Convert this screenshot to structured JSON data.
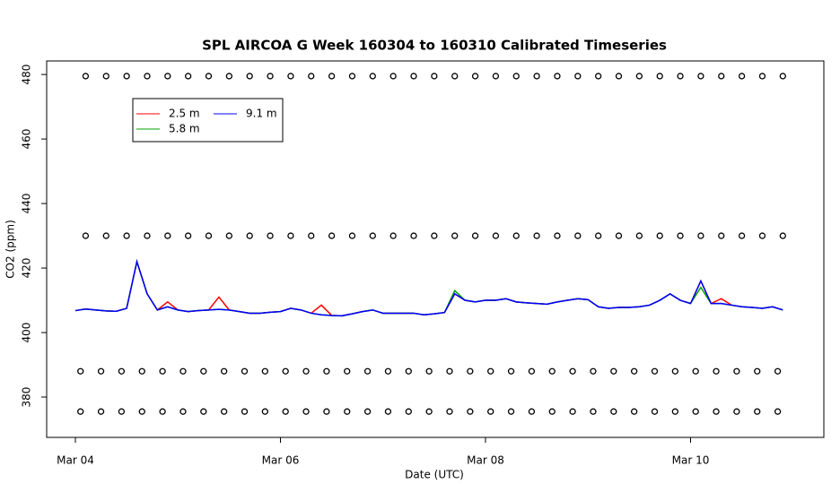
{
  "chart_data": {
    "type": "line",
    "title": "SPL AIRCOA G  Week 160304 to 160310  Calibrated Timeseries",
    "x_label": "Date (UTC)",
    "y_label": "CO2 (ppm)",
    "xlim": [
      -0.28,
      7.3
    ],
    "ylim": [
      367.5,
      484.2
    ],
    "xticks": [
      {
        "value": 0,
        "label": "Mar 04"
      },
      {
        "value": 2,
        "label": "Mar 06"
      },
      {
        "value": 4,
        "label": "Mar 08"
      },
      {
        "value": 6,
        "label": "Mar 10"
      }
    ],
    "yticks": [
      380,
      400,
      420,
      440,
      460,
      480
    ],
    "x": [
      0,
      0.1,
      0.2,
      0.3,
      0.4,
      0.5,
      0.6,
      0.7,
      0.8,
      0.9,
      1.0,
      1.1,
      1.2,
      1.3,
      1.4,
      1.5,
      1.6,
      1.7,
      1.8,
      1.9,
      2.0,
      2.1,
      2.2,
      2.3,
      2.4,
      2.5,
      2.6,
      2.7,
      2.8,
      2.9,
      3.0,
      3.1,
      3.2,
      3.3,
      3.4,
      3.5,
      3.6,
      3.7,
      3.8,
      3.9,
      4.0,
      4.1,
      4.2,
      4.3,
      4.4,
      4.5,
      4.6,
      4.7,
      4.8,
      4.9,
      5.0,
      5.1,
      5.2,
      5.3,
      5.4,
      5.5,
      5.6,
      5.7,
      5.8,
      5.9,
      6.0,
      6.1,
      6.2,
      6.3,
      6.4,
      6.5,
      6.6,
      6.7,
      6.8,
      6.9
    ],
    "series": [
      {
        "name": "2.5 m",
        "color": "#ff0000",
        "values": [
          406.8,
          407.3,
          407,
          406.7,
          406.6,
          407.5,
          422,
          412,
          407,
          409.5,
          407,
          406.5,
          406.8,
          407,
          411,
          407,
          406.5,
          406,
          406,
          406.3,
          406.5,
          407.5,
          407,
          406,
          408.5,
          405.3,
          405.2,
          405.8,
          406.5,
          407,
          406,
          406,
          406,
          406,
          405.5,
          405.8,
          406.2,
          412,
          410,
          409.5,
          410,
          410,
          410.5,
          409.5,
          409.2,
          409,
          408.8,
          409.5,
          410,
          410.5,
          410.2,
          408,
          407.5,
          407.8,
          407.8,
          408,
          408.5,
          410,
          412,
          410,
          409,
          416,
          409,
          410.5,
          408.5,
          408,
          407.8,
          407.5,
          408,
          407
        ]
      },
      {
        "name": "5.8 m",
        "color": "#00a000",
        "values": [
          406.8,
          407.3,
          407,
          406.7,
          406.6,
          407.5,
          422,
          412,
          407,
          408,
          407,
          406.5,
          406.8,
          407,
          407.2,
          407,
          406.5,
          406,
          406,
          406.3,
          406.5,
          407.5,
          407,
          406,
          405.5,
          405.3,
          405.2,
          405.8,
          406.5,
          407,
          406,
          406,
          406,
          406,
          405.5,
          405.8,
          406.2,
          413,
          410,
          409.5,
          410,
          410,
          410.5,
          409.5,
          409.2,
          409,
          408.8,
          409.5,
          410,
          410.5,
          410.2,
          408,
          407.5,
          407.8,
          407.8,
          408,
          408.5,
          410,
          412,
          410,
          409,
          414,
          409,
          409,
          408.5,
          408,
          407.8,
          407.5,
          408,
          407
        ]
      },
      {
        "name": "9.1 m",
        "color": "#0000ff",
        "values": [
          406.8,
          407.3,
          407,
          406.7,
          406.6,
          407.5,
          422,
          412,
          407,
          408,
          407,
          406.5,
          406.8,
          407,
          407.2,
          407,
          406.5,
          406,
          406,
          406.3,
          406.5,
          407.5,
          407,
          406,
          405.5,
          405.3,
          405.2,
          405.8,
          406.5,
          407,
          406,
          406,
          406,
          406,
          405.5,
          405.8,
          406.2,
          412,
          410,
          409.5,
          410,
          410,
          410.5,
          409.5,
          409.2,
          409,
          408.8,
          409.5,
          410,
          410.5,
          410.2,
          408,
          407.5,
          407.8,
          407.8,
          408,
          408.5,
          410,
          412,
          410,
          409,
          416,
          409,
          409,
          408.5,
          408,
          407.8,
          407.5,
          408,
          407
        ]
      }
    ],
    "points": [
      {
        "color": "#000000",
        "x": [
          0.1,
          0.3,
          0.5,
          0.7,
          0.9,
          1.1,
          1.3,
          1.5,
          1.7,
          1.9,
          2.1,
          2.3,
          2.5,
          2.7,
          2.9,
          3.1,
          3.3,
          3.5,
          3.7,
          3.9,
          4.1,
          4.3,
          4.5,
          4.7,
          4.9,
          5.1,
          5.3,
          5.5,
          5.7,
          5.9,
          6.1,
          6.3,
          6.5,
          6.7,
          6.9
        ],
        "values": [
          479.5,
          479.5,
          479.5,
          479.5,
          479.5,
          479.5,
          479.5,
          479.5,
          479.5,
          479.5,
          479.5,
          479.5,
          479.5,
          479.5,
          479.5,
          479.5,
          479.5,
          479.5,
          479.5,
          479.5,
          479.5,
          479.5,
          479.5,
          479.5,
          479.5,
          479.5,
          479.5,
          479.5,
          479.5,
          479.5,
          479.5,
          479.5,
          479.5,
          479.5,
          479.5
        ]
      },
      {
        "color": "#000000",
        "x": [
          0.1,
          0.3,
          0.5,
          0.7,
          0.9,
          1.1,
          1.3,
          1.5,
          1.7,
          1.9,
          2.1,
          2.3,
          2.5,
          2.7,
          2.9,
          3.1,
          3.3,
          3.5,
          3.7,
          3.9,
          4.1,
          4.3,
          4.5,
          4.7,
          4.9,
          5.1,
          5.3,
          5.5,
          5.7,
          5.9,
          6.1,
          6.3,
          6.5,
          6.7,
          6.9
        ],
        "values": [
          430,
          430,
          430,
          430,
          430,
          430,
          430,
          430,
          430,
          430,
          430,
          430,
          430,
          430,
          430,
          430,
          430,
          430,
          430,
          430,
          430,
          430,
          430,
          430,
          430,
          430,
          430,
          430,
          430,
          430,
          430,
          430,
          430,
          430,
          430
        ]
      },
      {
        "color": "#000000",
        "x": [
          0.05,
          0.25,
          0.45,
          0.65,
          0.85,
          1.05,
          1.25,
          1.45,
          1.65,
          1.85,
          2.05,
          2.25,
          2.45,
          2.65,
          2.85,
          3.05,
          3.25,
          3.45,
          3.65,
          3.85,
          4.05,
          4.25,
          4.45,
          4.65,
          4.85,
          5.05,
          5.25,
          5.45,
          5.65,
          5.85,
          6.05,
          6.25,
          6.45,
          6.65,
          6.85
        ],
        "values": [
          388,
          388,
          388,
          388,
          388,
          388,
          388,
          388,
          388,
          388,
          388,
          388,
          388,
          388,
          388,
          388,
          388,
          388,
          388,
          388,
          388,
          388,
          388,
          388,
          388,
          388,
          388,
          388,
          388,
          388,
          388,
          388,
          388,
          388,
          388
        ]
      },
      {
        "color": "#000000",
        "x": [
          0.05,
          0.25,
          0.45,
          0.65,
          0.85,
          1.05,
          1.25,
          1.45,
          1.65,
          1.85,
          2.05,
          2.25,
          2.45,
          2.65,
          2.85,
          3.05,
          3.25,
          3.45,
          3.65,
          3.85,
          4.05,
          4.25,
          4.45,
          4.65,
          4.85,
          5.05,
          5.25,
          5.45,
          5.65,
          5.85,
          6.05,
          6.25,
          6.45,
          6.65,
          6.85
        ],
        "values": [
          375.5,
          375.5,
          375.5,
          375.5,
          375.5,
          375.5,
          375.5,
          375.5,
          375.5,
          375.5,
          375.5,
          375.5,
          375.5,
          375.5,
          375.5,
          375.5,
          375.5,
          375.5,
          375.5,
          375.5,
          375.5,
          375.5,
          375.5,
          375.5,
          375.5,
          375.5,
          375.5,
          375.5,
          375.5,
          375.5,
          375.5,
          375.5,
          375.5,
          375.5,
          375.5
        ]
      }
    ]
  }
}
